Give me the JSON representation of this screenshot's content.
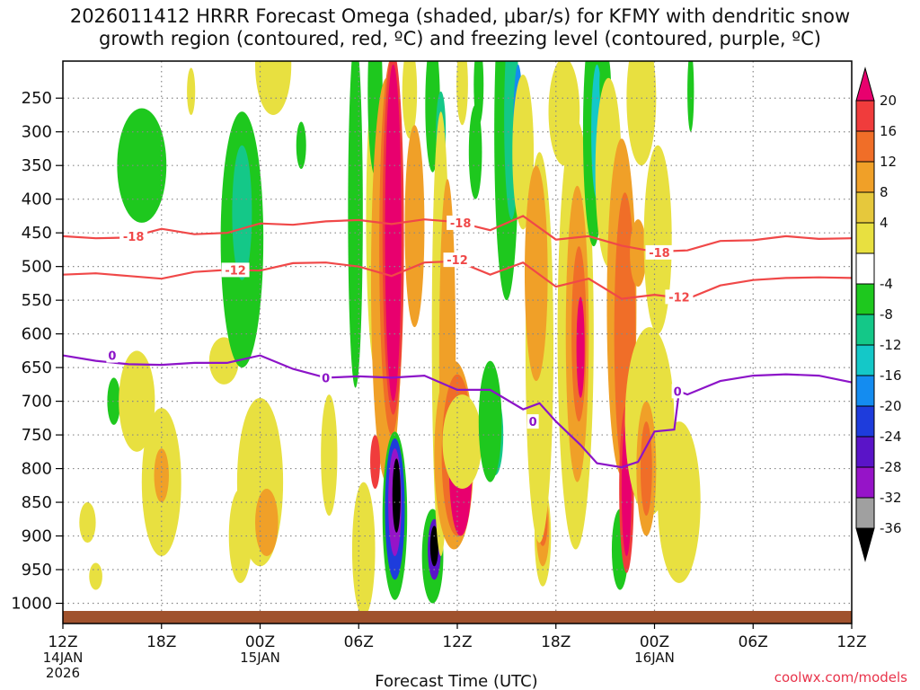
{
  "chart_data": {
    "type": "heatmap",
    "title_line1": "2026011412 HRRR Forecast Omega (shaded, μbar/s) for KFMY with dendritic snow",
    "title_line2": "growth region (contoured, red, ºC) and freezing level (contoured, purple, ºC)",
    "xlabel": "Forecast Time (UTC)",
    "ylabel": "",
    "x_range_hours": [
      0,
      48
    ],
    "x_ticks": [
      {
        "hour": 0,
        "label": "12Z",
        "sub1": "14JAN",
        "sub2": "2026"
      },
      {
        "hour": 6,
        "label": "18Z",
        "sub1": "",
        "sub2": ""
      },
      {
        "hour": 12,
        "label": "00Z",
        "sub1": "15JAN",
        "sub2": ""
      },
      {
        "hour": 18,
        "label": "06Z",
        "sub1": "",
        "sub2": ""
      },
      {
        "hour": 24,
        "label": "12Z",
        "sub1": "",
        "sub2": ""
      },
      {
        "hour": 30,
        "label": "18Z",
        "sub1": "",
        "sub2": ""
      },
      {
        "hour": 36,
        "label": "00Z",
        "sub1": "16JAN",
        "sub2": ""
      },
      {
        "hour": 42,
        "label": "06Z",
        "sub1": "",
        "sub2": ""
      },
      {
        "hour": 48,
        "label": "12Z",
        "sub1": "",
        "sub2": ""
      }
    ],
    "y_range_hpa": [
      1030,
      195
    ],
    "y_ticks": [
      "250",
      "300",
      "350",
      "400",
      "450",
      "500",
      "550",
      "600",
      "650",
      "700",
      "750",
      "800",
      "850",
      "900",
      "950",
      "1000"
    ],
    "colorbar": {
      "labels": [
        "20",
        "16",
        "12",
        "8",
        "4",
        "-4",
        "-8",
        "-12",
        "-16",
        "-20",
        "-24",
        "-28",
        "-32",
        "-36"
      ],
      "bins": [
        {
          "color": "#e8006e"
        },
        {
          "color": "#f03c3c"
        },
        {
          "color": "#f06e28"
        },
        {
          "color": "#f0a028"
        },
        {
          "color": "#e6c83c"
        },
        {
          "color": "#e8e040"
        },
        {
          "color": "#ffffff"
        },
        {
          "color": "#1ec81e"
        },
        {
          "color": "#14c888"
        },
        {
          "color": "#14c8c8"
        },
        {
          "color": "#148cf0"
        },
        {
          "color": "#1e3cdc"
        },
        {
          "color": "#5a14c8"
        },
        {
          "color": "#9614c8"
        },
        {
          "color": "#a0a0a0"
        },
        {
          "color": "#000000"
        }
      ]
    },
    "colors": {
      "dgz_contour": "#f04848",
      "freezing_contour": "#8c14c8",
      "ground": "#a0522d",
      "grid": "#888888"
    },
    "omega_cells": [
      {
        "t": 1.5,
        "p": 880,
        "dt": 1.0,
        "dp": 60,
        "v": 5
      },
      {
        "t": 2.0,
        "p": 960,
        "dt": 0.8,
        "dp": 40,
        "v": 5
      },
      {
        "t": 3.1,
        "p": 700,
        "dt": 0.8,
        "dp": 70,
        "v": -6
      },
      {
        "t": 4.5,
        "p": 700,
        "dt": 2.2,
        "dp": 150,
        "v": 5
      },
      {
        "t": 6.0,
        "p": 820,
        "dt": 2.4,
        "dp": 220,
        "v": 6
      },
      {
        "t": 6.0,
        "p": 810,
        "dt": 0.9,
        "dp": 80,
        "v": 9
      },
      {
        "t": 4.8,
        "p": 350,
        "dt": 3.0,
        "dp": 170,
        "v": -6
      },
      {
        "t": 7.8,
        "p": 240,
        "dt": 0.5,
        "dp": 70,
        "v": 5
      },
      {
        "t": 9.8,
        "p": 640,
        "dt": 1.8,
        "dp": 70,
        "v": 5
      },
      {
        "t": 10.8,
        "p": 900,
        "dt": 1.4,
        "dp": 140,
        "v": 5
      },
      {
        "t": 10.9,
        "p": 460,
        "dt": 2.6,
        "dp": 380,
        "v": -6
      },
      {
        "t": 10.9,
        "p": 420,
        "dt": 1.2,
        "dp": 200,
        "v": -11
      },
      {
        "t": 12.0,
        "p": 820,
        "dt": 2.8,
        "dp": 250,
        "v": 5
      },
      {
        "t": 12.4,
        "p": 880,
        "dt": 1.4,
        "dp": 100,
        "v": 9
      },
      {
        "t": 12.8,
        "p": 200,
        "dt": 2.2,
        "dp": 150,
        "v": 5
      },
      {
        "t": 14.5,
        "p": 320,
        "dt": 0.6,
        "dp": 70,
        "v": -6
      },
      {
        "t": 16.2,
        "p": 780,
        "dt": 1.0,
        "dp": 180,
        "v": 5
      },
      {
        "t": 17.8,
        "p": 420,
        "dt": 0.9,
        "dp": 520,
        "v": -6
      },
      {
        "t": 18.3,
        "p": 920,
        "dt": 1.4,
        "dp": 200,
        "v": 6
      },
      {
        "t": 19.1,
        "p": 430,
        "dt": 1.3,
        "dp": 460,
        "v": 6
      },
      {
        "t": 19.0,
        "p": 240,
        "dt": 0.9,
        "dp": 250,
        "v": -6
      },
      {
        "t": 19.7,
        "p": 520,
        "dt": 1.9,
        "dp": 600,
        "v": 9
      },
      {
        "t": 20.0,
        "p": 470,
        "dt": 1.5,
        "dp": 560,
        "v": 12
      },
      {
        "t": 20.1,
        "p": 450,
        "dt": 1.3,
        "dp": 540,
        "v": 16
      },
      {
        "t": 20.1,
        "p": 450,
        "dt": 1.0,
        "dp": 500,
        "v": 21
      },
      {
        "t": 20.2,
        "p": 870,
        "dt": 1.5,
        "dp": 250,
        "v": -6
      },
      {
        "t": 20.2,
        "p": 860,
        "dt": 1.2,
        "dp": 210,
        "v": -20
      },
      {
        "t": 20.2,
        "p": 850,
        "dt": 0.8,
        "dp": 160,
        "v": -30
      },
      {
        "t": 20.3,
        "p": 840,
        "dt": 0.5,
        "dp": 110,
        "v": -40
      },
      {
        "t": 19.0,
        "p": 790,
        "dt": 0.6,
        "dp": 80,
        "v": 16
      },
      {
        "t": 21.1,
        "p": 240,
        "dt": 0.9,
        "dp": 140,
        "v": 5
      },
      {
        "t": 21.4,
        "p": 440,
        "dt": 1.2,
        "dp": 300,
        "v": 9
      },
      {
        "t": 22.5,
        "p": 260,
        "dt": 0.9,
        "dp": 200,
        "v": -6
      },
      {
        "t": 23.0,
        "p": 300,
        "dt": 0.6,
        "dp": 120,
        "v": -11
      },
      {
        "t": 22.5,
        "p": 930,
        "dt": 1.3,
        "dp": 140,
        "v": -6
      },
      {
        "t": 22.6,
        "p": 920,
        "dt": 0.8,
        "dp": 90,
        "v": -25
      },
      {
        "t": 22.6,
        "p": 915,
        "dt": 0.5,
        "dp": 60,
        "v": -40
      },
      {
        "t": 23.0,
        "p": 600,
        "dt": 1.1,
        "dp": 660,
        "v": 6
      },
      {
        "t": 23.4,
        "p": 630,
        "dt": 1.0,
        "dp": 520,
        "v": 9
      },
      {
        "t": 23.8,
        "p": 780,
        "dt": 2.4,
        "dp": 280,
        "v": 9
      },
      {
        "t": 24.0,
        "p": 780,
        "dt": 1.9,
        "dp": 240,
        "v": 12
      },
      {
        "t": 24.2,
        "p": 800,
        "dt": 1.4,
        "dp": 200,
        "v": 21
      },
      {
        "t": 24.3,
        "p": 760,
        "dt": 2.4,
        "dp": 140,
        "v": 5
      },
      {
        "t": 24.3,
        "p": 230,
        "dt": 0.7,
        "dp": 120,
        "v": 5
      },
      {
        "t": 25.1,
        "p": 330,
        "dt": 0.8,
        "dp": 140,
        "v": -6
      },
      {
        "t": 25.3,
        "p": 230,
        "dt": 0.6,
        "dp": 120,
        "v": -6
      },
      {
        "t": 26.3,
        "p": 750,
        "dt": 1.0,
        "dp": 120,
        "v": -10
      },
      {
        "t": 26.0,
        "p": 730,
        "dt": 1.4,
        "dp": 180,
        "v": -6
      },
      {
        "t": 27.0,
        "p": 300,
        "dt": 1.5,
        "dp": 500,
        "v": -6
      },
      {
        "t": 27.3,
        "p": 280,
        "dt": 0.9,
        "dp": 300,
        "v": -10
      },
      {
        "t": 27.7,
        "p": 300,
        "dt": 0.6,
        "dp": 200,
        "v": -16
      },
      {
        "t": 28.0,
        "p": 330,
        "dt": 1.3,
        "dp": 230,
        "v": 5
      },
      {
        "t": 29.2,
        "p": 900,
        "dt": 1.0,
        "dp": 150,
        "v": 6
      },
      {
        "t": 29.2,
        "p": 890,
        "dt": 0.8,
        "dp": 110,
        "v": 9
      },
      {
        "t": 29.2,
        "p": 880,
        "dt": 0.6,
        "dp": 70,
        "v": 12
      },
      {
        "t": 29.0,
        "p": 620,
        "dt": 1.7,
        "dp": 580,
        "v": 5
      },
      {
        "t": 28.8,
        "p": 510,
        "dt": 1.4,
        "dp": 320,
        "v": 9
      },
      {
        "t": 30.5,
        "p": 270,
        "dt": 1.9,
        "dp": 160,
        "v": 5
      },
      {
        "t": 31.2,
        "p": 600,
        "dt": 2.2,
        "dp": 640,
        "v": 5
      },
      {
        "t": 31.3,
        "p": 600,
        "dt": 1.4,
        "dp": 440,
        "v": 9
      },
      {
        "t": 31.4,
        "p": 600,
        "dt": 0.9,
        "dp": 260,
        "v": 12
      },
      {
        "t": 31.5,
        "p": 620,
        "dt": 0.5,
        "dp": 150,
        "v": 21
      },
      {
        "t": 32.3,
        "p": 300,
        "dt": 1.3,
        "dp": 340,
        "v": -6
      },
      {
        "t": 32.5,
        "p": 300,
        "dt": 0.7,
        "dp": 200,
        "v": -12
      },
      {
        "t": 33.0,
        "p": 230,
        "dt": 0.7,
        "dp": 100,
        "v": -6
      },
      {
        "t": 33.2,
        "p": 360,
        "dt": 1.6,
        "dp": 280,
        "v": 5
      },
      {
        "t": 34.0,
        "p": 560,
        "dt": 1.8,
        "dp": 500,
        "v": 9
      },
      {
        "t": 34.2,
        "p": 600,
        "dt": 1.3,
        "dp": 420,
        "v": 12
      },
      {
        "t": 33.9,
        "p": 920,
        "dt": 1.0,
        "dp": 120,
        "v": -6
      },
      {
        "t": 34.3,
        "p": 830,
        "dt": 0.9,
        "dp": 250,
        "v": 16
      },
      {
        "t": 34.3,
        "p": 830,
        "dt": 0.6,
        "dp": 200,
        "v": 21
      },
      {
        "t": 35.0,
        "p": 480,
        "dt": 1.0,
        "dp": 100,
        "v": 9
      },
      {
        "t": 35.2,
        "p": 250,
        "dt": 1.8,
        "dp": 200,
        "v": 5
      },
      {
        "t": 35.7,
        "p": 730,
        "dt": 3.0,
        "dp": 280,
        "v": 5
      },
      {
        "t": 35.5,
        "p": 800,
        "dt": 1.2,
        "dp": 200,
        "v": 9
      },
      {
        "t": 35.5,
        "p": 800,
        "dt": 0.7,
        "dp": 140,
        "v": 12
      },
      {
        "t": 36.2,
        "p": 460,
        "dt": 1.7,
        "dp": 280,
        "v": 5
      },
      {
        "t": 37.5,
        "p": 850,
        "dt": 2.6,
        "dp": 240,
        "v": 5
      },
      {
        "t": 38.2,
        "p": 240,
        "dt": 0.4,
        "dp": 120,
        "v": -6
      }
    ],
    "dgz_contours": [
      {
        "label": "-18",
        "label_at": [
          [
            4.3,
            455
          ],
          [
            24.2,
            435
          ],
          [
            36.3,
            479
          ]
        ],
        "points": [
          [
            0,
            455
          ],
          [
            2,
            458
          ],
          [
            4,
            457
          ],
          [
            6,
            444
          ],
          [
            8,
            452
          ],
          [
            10,
            450
          ],
          [
            12,
            436
          ],
          [
            14,
            438
          ],
          [
            16,
            433
          ],
          [
            18,
            431
          ],
          [
            20,
            437
          ],
          [
            22,
            430
          ],
          [
            24,
            434
          ],
          [
            26,
            446
          ],
          [
            28,
            425
          ],
          [
            30,
            460
          ],
          [
            32,
            455
          ],
          [
            34,
            469
          ],
          [
            36,
            478
          ],
          [
            38,
            476
          ],
          [
            40,
            462
          ],
          [
            42,
            461
          ],
          [
            44,
            455
          ],
          [
            46,
            459
          ],
          [
            48,
            458
          ]
        ]
      },
      {
        "label": "-12",
        "label_at": [
          [
            10.5,
            505
          ],
          [
            24.0,
            490
          ],
          [
            37.5,
            545
          ]
        ],
        "points": [
          [
            0,
            512
          ],
          [
            2,
            510
          ],
          [
            4,
            514
          ],
          [
            6,
            518
          ],
          [
            8,
            508
          ],
          [
            10,
            505
          ],
          [
            12,
            506
          ],
          [
            14,
            495
          ],
          [
            16,
            494
          ],
          [
            18,
            500
          ],
          [
            20,
            514
          ],
          [
            22,
            494
          ],
          [
            24,
            492
          ],
          [
            26,
            512
          ],
          [
            28,
            494
          ],
          [
            30,
            530
          ],
          [
            32,
            518
          ],
          [
            34,
            548
          ],
          [
            36,
            542
          ],
          [
            38,
            548
          ],
          [
            40,
            528
          ],
          [
            42,
            520
          ],
          [
            44,
            517
          ],
          [
            46,
            516
          ],
          [
            48,
            517
          ]
        ]
      }
    ],
    "freezing_contours": [
      {
        "label": "0",
        "label_at": [
          [
            3.0,
            632
          ],
          [
            16.0,
            665
          ],
          [
            28.6,
            730
          ],
          [
            37.4,
            685
          ]
        ],
        "points": [
          [
            0,
            632
          ],
          [
            2,
            640
          ],
          [
            4,
            645
          ],
          [
            6,
            646
          ],
          [
            8,
            643
          ],
          [
            10,
            643
          ],
          [
            12,
            632
          ],
          [
            14,
            652
          ],
          [
            16,
            665
          ],
          [
            18,
            663
          ],
          [
            20,
            665
          ],
          [
            22,
            662
          ],
          [
            24,
            683
          ],
          [
            26,
            683
          ],
          [
            28,
            712
          ],
          [
            29,
            703
          ],
          [
            30,
            730
          ],
          [
            31.5,
            765
          ],
          [
            32.5,
            792
          ],
          [
            34,
            798
          ],
          [
            35,
            790
          ],
          [
            36,
            745
          ],
          [
            37.2,
            742
          ],
          [
            37.5,
            685
          ],
          [
            38,
            690
          ],
          [
            40,
            670
          ],
          [
            42,
            662
          ],
          [
            44,
            660
          ],
          [
            46,
            662
          ],
          [
            48,
            672
          ]
        ]
      }
    ]
  },
  "credit": "coolwx.com/models"
}
